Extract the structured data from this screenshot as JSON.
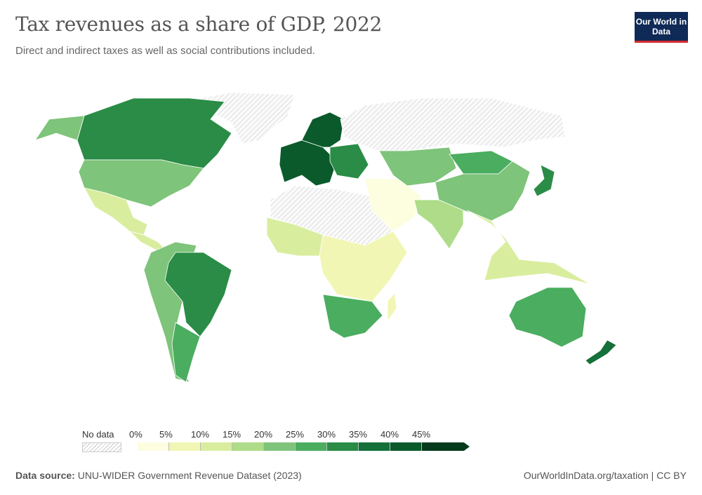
{
  "header": {
    "title": "Tax revenues as a share of GDP, 2022",
    "subtitle": "Direct and indirect taxes as well as social contributions included.",
    "logo": "Our World in Data"
  },
  "chart_data": {
    "type": "choropleth-map",
    "title": "Tax revenues as a share of GDP, 2022",
    "legend": {
      "no_data_label": "No data",
      "ticks": [
        "0%",
        "5%",
        "10%",
        "15%",
        "20%",
        "25%",
        "30%",
        "35%",
        "40%",
        "45%"
      ],
      "bins": [
        {
          "range": "0-5%",
          "color": "#fdfde0"
        },
        {
          "range": "5-10%",
          "color": "#f1f6b4"
        },
        {
          "range": "10-15%",
          "color": "#d9ed9f"
        },
        {
          "range": "15-20%",
          "color": "#aedc88"
        },
        {
          "range": "20-25%",
          "color": "#7ec47a"
        },
        {
          "range": "25-30%",
          "color": "#4aad5f"
        },
        {
          "range": "30-35%",
          "color": "#2a8c46"
        },
        {
          "range": "35-40%",
          "color": "#157039"
        },
        {
          "range": "40-45%",
          "color": "#0b5a2c"
        },
        {
          "range": ">45%",
          "color": "#053b1c"
        }
      ]
    },
    "regions": [
      {
        "name": "Canada",
        "bin": 6
      },
      {
        "name": "United States",
        "bin": 4
      },
      {
        "name": "Mexico",
        "bin": 2
      },
      {
        "name": "Central America",
        "bin": 2
      },
      {
        "name": "Brazil",
        "bin": 6
      },
      {
        "name": "South America (other)",
        "bin": 4
      },
      {
        "name": "Argentina",
        "bin": 5
      },
      {
        "name": "Western Europe",
        "bin": 8
      },
      {
        "name": "Eastern Europe",
        "bin": 6
      },
      {
        "name": "Scandinavia",
        "bin": 8
      },
      {
        "name": "Greenland",
        "bin": null
      },
      {
        "name": "Russia",
        "bin": null
      },
      {
        "name": "North Africa",
        "bin": null
      },
      {
        "name": "West Africa",
        "bin": 2
      },
      {
        "name": "Central/East Africa",
        "bin": 1
      },
      {
        "name": "Southern Africa",
        "bin": 5
      },
      {
        "name": "Middle East",
        "bin": 0
      },
      {
        "name": "Central Asia",
        "bin": 4
      },
      {
        "name": "Mongolia",
        "bin": 5
      },
      {
        "name": "China",
        "bin": 4
      },
      {
        "name": "India",
        "bin": 3
      },
      {
        "name": "Southeast Asia",
        "bin": 2
      },
      {
        "name": "Japan",
        "bin": 6
      },
      {
        "name": "Australia",
        "bin": 5
      },
      {
        "name": "New Zealand",
        "bin": 7
      },
      {
        "name": "Madagascar",
        "bin": 1
      }
    ]
  },
  "footer": {
    "source_label": "Data source:",
    "source": "UNU-WIDER Government Revenue Dataset (2023)",
    "url": "OurWorldInData.org/taxation | CC BY"
  }
}
